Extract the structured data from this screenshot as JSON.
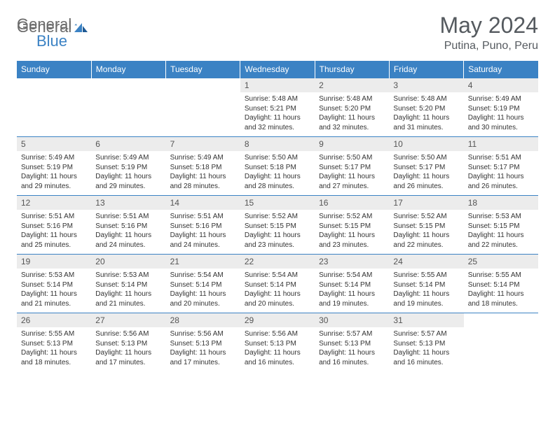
{
  "brand": {
    "part1": "General",
    "part2": "Blue"
  },
  "title": "May 2024",
  "location": "Putina, Puno, Peru",
  "colors": {
    "header_bg": "#3b82c4",
    "header_text": "#ffffff",
    "daynum_bg": "#ececec",
    "text": "#333333",
    "title_color": "#555a5f",
    "border": "#3b82c4"
  },
  "daysOfWeek": [
    "Sunday",
    "Monday",
    "Tuesday",
    "Wednesday",
    "Thursday",
    "Friday",
    "Saturday"
  ],
  "weeks": [
    [
      null,
      null,
      null,
      {
        "n": "1",
        "sunrise": "5:48 AM",
        "sunset": "5:21 PM",
        "daylight": "11 hours and 32 minutes."
      },
      {
        "n": "2",
        "sunrise": "5:48 AM",
        "sunset": "5:20 PM",
        "daylight": "11 hours and 32 minutes."
      },
      {
        "n": "3",
        "sunrise": "5:48 AM",
        "sunset": "5:20 PM",
        "daylight": "11 hours and 31 minutes."
      },
      {
        "n": "4",
        "sunrise": "5:49 AM",
        "sunset": "5:19 PM",
        "daylight": "11 hours and 30 minutes."
      }
    ],
    [
      {
        "n": "5",
        "sunrise": "5:49 AM",
        "sunset": "5:19 PM",
        "daylight": "11 hours and 29 minutes."
      },
      {
        "n": "6",
        "sunrise": "5:49 AM",
        "sunset": "5:19 PM",
        "daylight": "11 hours and 29 minutes."
      },
      {
        "n": "7",
        "sunrise": "5:49 AM",
        "sunset": "5:18 PM",
        "daylight": "11 hours and 28 minutes."
      },
      {
        "n": "8",
        "sunrise": "5:50 AM",
        "sunset": "5:18 PM",
        "daylight": "11 hours and 28 minutes."
      },
      {
        "n": "9",
        "sunrise": "5:50 AM",
        "sunset": "5:17 PM",
        "daylight": "11 hours and 27 minutes."
      },
      {
        "n": "10",
        "sunrise": "5:50 AM",
        "sunset": "5:17 PM",
        "daylight": "11 hours and 26 minutes."
      },
      {
        "n": "11",
        "sunrise": "5:51 AM",
        "sunset": "5:17 PM",
        "daylight": "11 hours and 26 minutes."
      }
    ],
    [
      {
        "n": "12",
        "sunrise": "5:51 AM",
        "sunset": "5:16 PM",
        "daylight": "11 hours and 25 minutes."
      },
      {
        "n": "13",
        "sunrise": "5:51 AM",
        "sunset": "5:16 PM",
        "daylight": "11 hours and 24 minutes."
      },
      {
        "n": "14",
        "sunrise": "5:51 AM",
        "sunset": "5:16 PM",
        "daylight": "11 hours and 24 minutes."
      },
      {
        "n": "15",
        "sunrise": "5:52 AM",
        "sunset": "5:15 PM",
        "daylight": "11 hours and 23 minutes."
      },
      {
        "n": "16",
        "sunrise": "5:52 AM",
        "sunset": "5:15 PM",
        "daylight": "11 hours and 23 minutes."
      },
      {
        "n": "17",
        "sunrise": "5:52 AM",
        "sunset": "5:15 PM",
        "daylight": "11 hours and 22 minutes."
      },
      {
        "n": "18",
        "sunrise": "5:53 AM",
        "sunset": "5:15 PM",
        "daylight": "11 hours and 22 minutes."
      }
    ],
    [
      {
        "n": "19",
        "sunrise": "5:53 AM",
        "sunset": "5:14 PM",
        "daylight": "11 hours and 21 minutes."
      },
      {
        "n": "20",
        "sunrise": "5:53 AM",
        "sunset": "5:14 PM",
        "daylight": "11 hours and 21 minutes."
      },
      {
        "n": "21",
        "sunrise": "5:54 AM",
        "sunset": "5:14 PM",
        "daylight": "11 hours and 20 minutes."
      },
      {
        "n": "22",
        "sunrise": "5:54 AM",
        "sunset": "5:14 PM",
        "daylight": "11 hours and 20 minutes."
      },
      {
        "n": "23",
        "sunrise": "5:54 AM",
        "sunset": "5:14 PM",
        "daylight": "11 hours and 19 minutes."
      },
      {
        "n": "24",
        "sunrise": "5:55 AM",
        "sunset": "5:14 PM",
        "daylight": "11 hours and 19 minutes."
      },
      {
        "n": "25",
        "sunrise": "5:55 AM",
        "sunset": "5:14 PM",
        "daylight": "11 hours and 18 minutes."
      }
    ],
    [
      {
        "n": "26",
        "sunrise": "5:55 AM",
        "sunset": "5:13 PM",
        "daylight": "11 hours and 18 minutes."
      },
      {
        "n": "27",
        "sunrise": "5:56 AM",
        "sunset": "5:13 PM",
        "daylight": "11 hours and 17 minutes."
      },
      {
        "n": "28",
        "sunrise": "5:56 AM",
        "sunset": "5:13 PM",
        "daylight": "11 hours and 17 minutes."
      },
      {
        "n": "29",
        "sunrise": "5:56 AM",
        "sunset": "5:13 PM",
        "daylight": "11 hours and 16 minutes."
      },
      {
        "n": "30",
        "sunrise": "5:57 AM",
        "sunset": "5:13 PM",
        "daylight": "11 hours and 16 minutes."
      },
      {
        "n": "31",
        "sunrise": "5:57 AM",
        "sunset": "5:13 PM",
        "daylight": "11 hours and 16 minutes."
      },
      null
    ]
  ],
  "labels": {
    "sunrise": "Sunrise:",
    "sunset": "Sunset:",
    "daylight": "Daylight:"
  }
}
